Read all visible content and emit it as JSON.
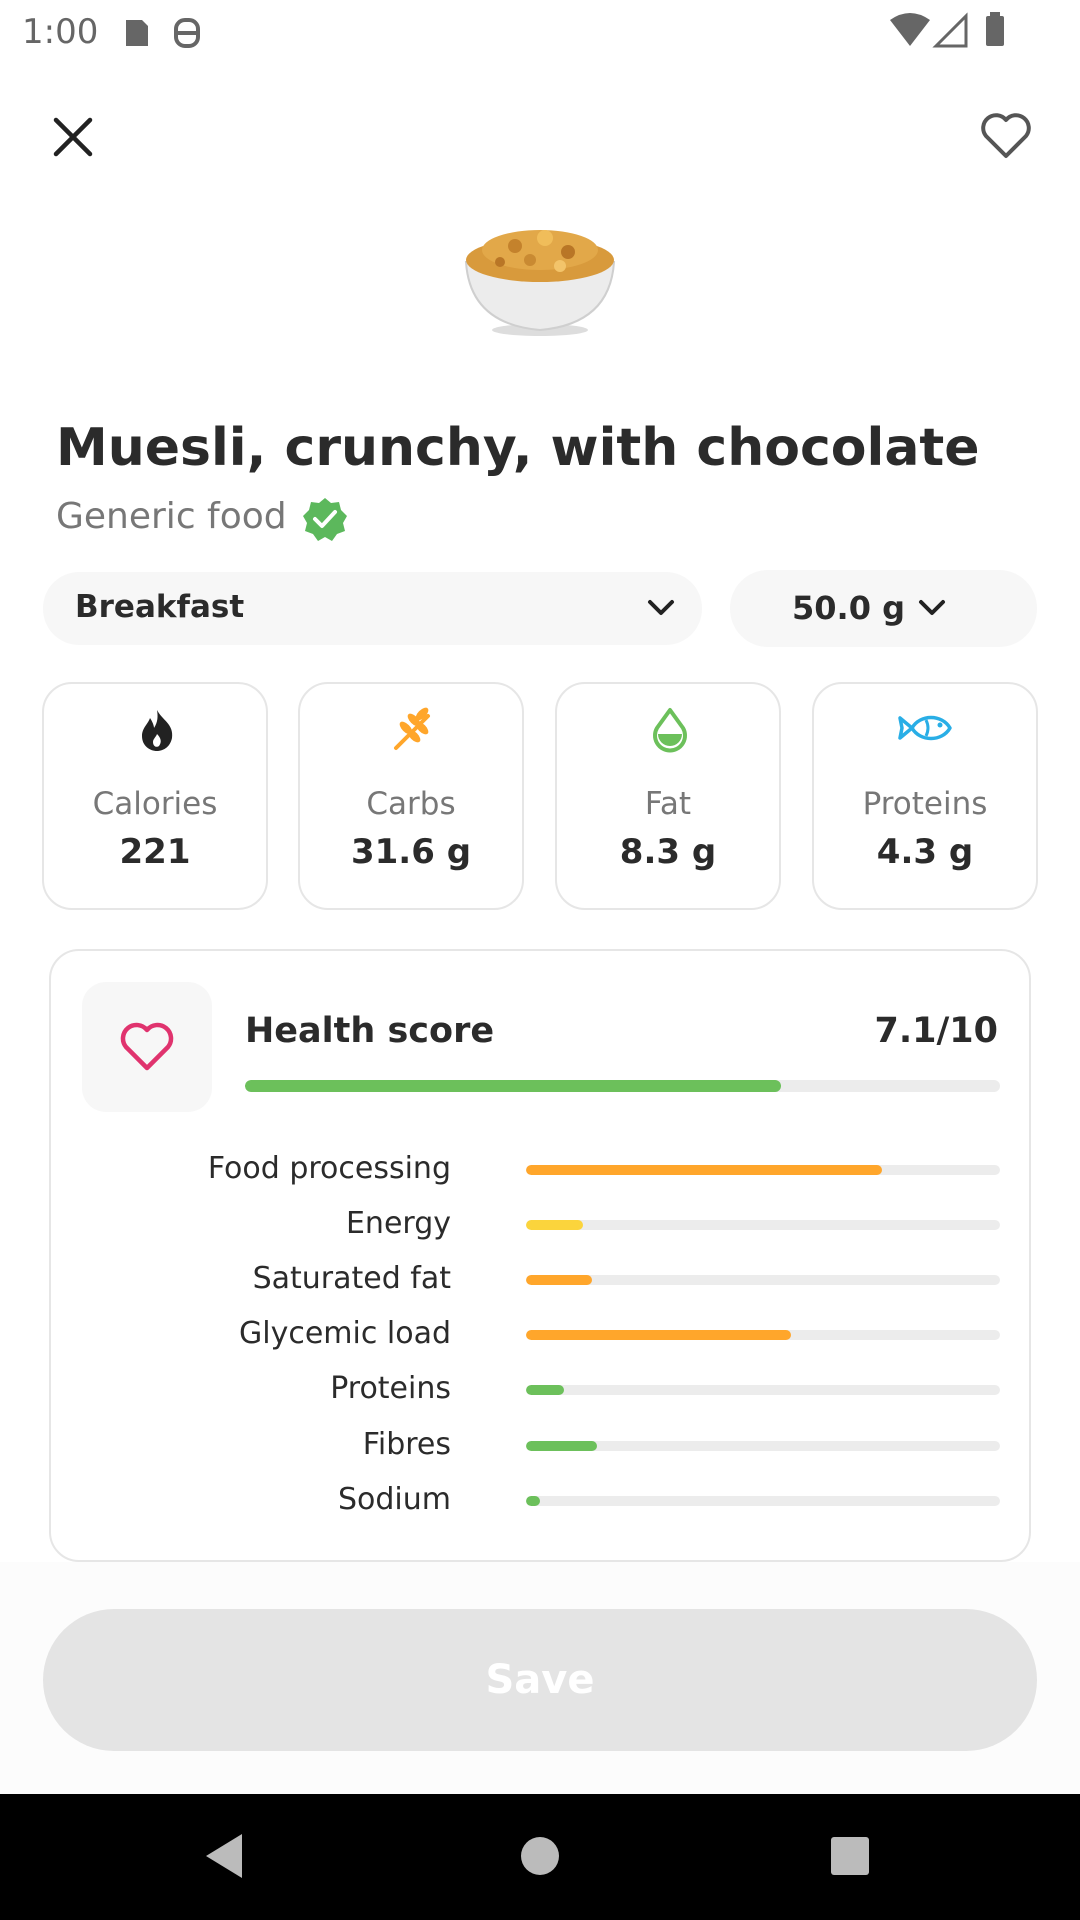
{
  "status_bar": {
    "time": "1:00"
  },
  "food": {
    "title": "Muesli, crunchy, with chocolate",
    "subtitle": "Generic food"
  },
  "meal": "Breakfast",
  "portion": "50.0 g",
  "nutrients": [
    {
      "label": "Calories",
      "value": "221"
    },
    {
      "label": "Carbs",
      "value": "31.6 g"
    },
    {
      "label": "Fat",
      "value": "8.3 g"
    },
    {
      "label": "Proteins",
      "value": "4.3 g"
    }
  ],
  "health_score": {
    "title": "Health score",
    "value": 7.1,
    "value_label": "7.1/10",
    "max": 10,
    "color": "#6cc05b"
  },
  "factors": [
    {
      "label": "Food processing",
      "value": 7.5,
      "color": "#ffa62b"
    },
    {
      "label": "Energy",
      "value": 1.2,
      "color": "#fbd43c"
    },
    {
      "label": "Saturated fat",
      "value": 1.4,
      "color": "#ffa62b"
    },
    {
      "label": "Glycemic load",
      "value": 5.6,
      "color": "#ffa62b"
    },
    {
      "label": "Proteins",
      "value": 0.8,
      "color": "#6cc05b"
    },
    {
      "label": "Fibres",
      "value": 1.5,
      "color": "#6cc05b"
    },
    {
      "label": "Sodium",
      "value": 0.3,
      "color": "#6cc05b"
    }
  ],
  "save_button": "Save"
}
